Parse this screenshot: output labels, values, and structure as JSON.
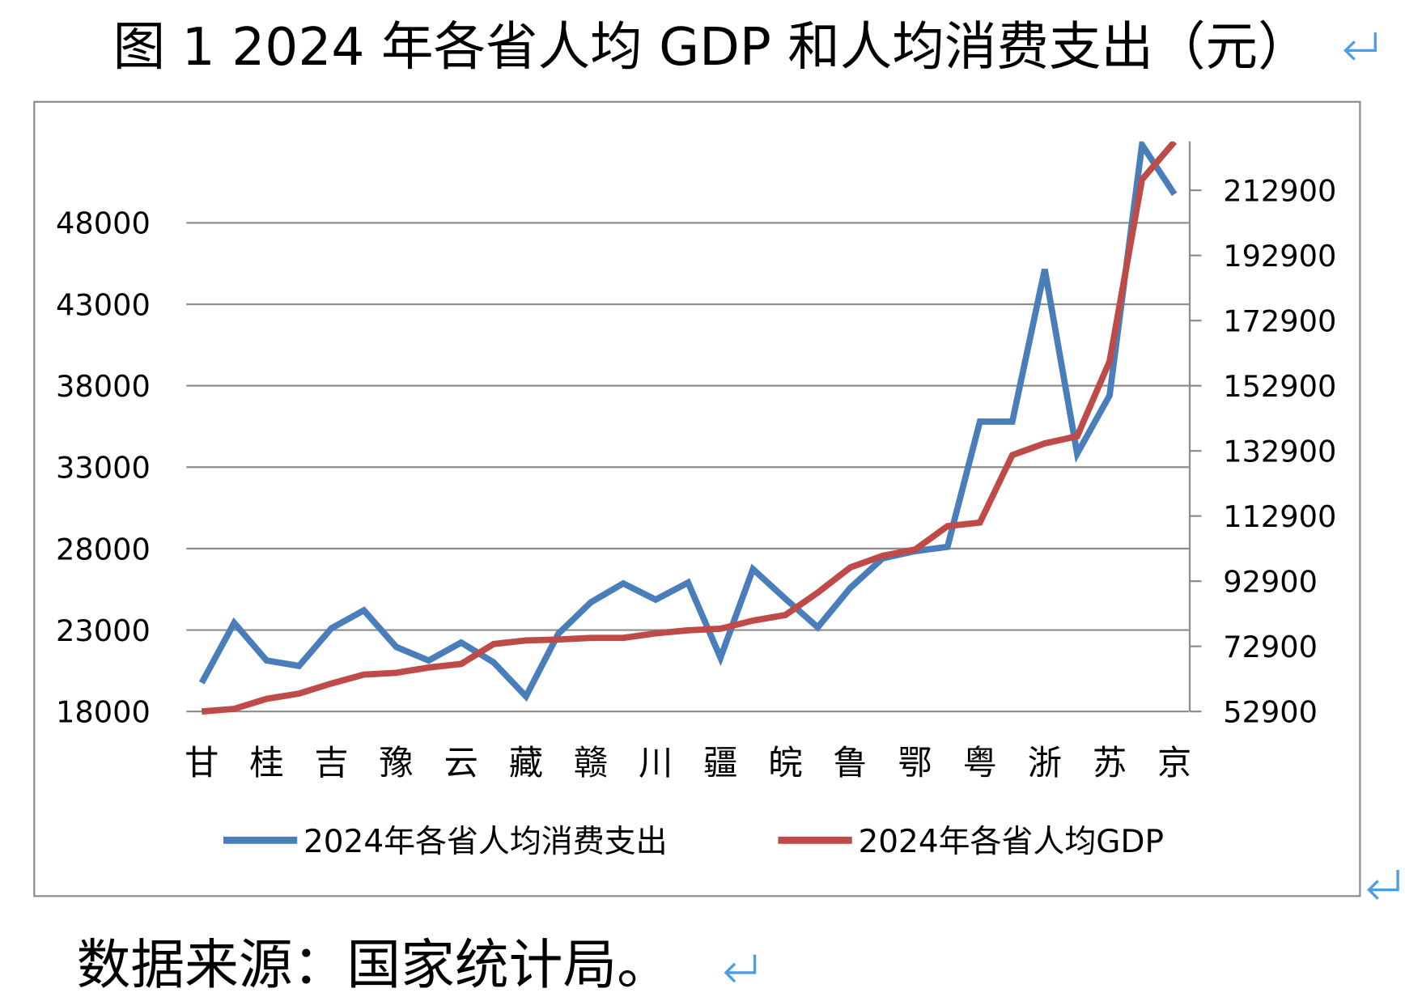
{
  "title": "图 1 2024 年各省人均 GDP 和人均消费支出（元）",
  "source": "数据来源：国家统计局。",
  "paragraph_mark_icon": "return-arrow-icon",
  "colors": {
    "consumption": "#4a7ebb",
    "gdp": "#be4b48",
    "grid": "#8c8c8c",
    "mark": "#4a9ee8"
  },
  "chart_data": {
    "type": "line",
    "title": "图 1 2024 年各省人均 GDP 和人均消费支出（元）",
    "x_tick_labels": [
      "甘",
      "桂",
      "吉",
      "豫",
      "云",
      "藏",
      "赣",
      "川",
      "疆",
      "皖",
      "鲁",
      "鄂",
      "粤",
      "浙",
      "苏",
      "京"
    ],
    "point_count": 31,
    "left_axis": {
      "ticks": [
        "18000",
        "23000",
        "28000",
        "33000",
        "38000",
        "43000",
        "48000"
      ],
      "ylim": [
        18000,
        53000
      ]
    },
    "right_axis": {
      "ticks": [
        "52900",
        "72900",
        "92900",
        "112900",
        "132900",
        "152900",
        "172900",
        "192900",
        "212900"
      ],
      "ylim": [
        52900,
        227900
      ]
    },
    "grid": true,
    "legend_placement": "bottom",
    "series": [
      {
        "name": "2024年各省人均消费支出",
        "axis": "left",
        "color": "#4a7ebb",
        "values": [
          19760,
          23440,
          21130,
          20800,
          23110,
          24210,
          21960,
          21130,
          22230,
          21020,
          18930,
          22780,
          24700,
          25860,
          24870,
          25910,
          21300,
          26740,
          24920,
          23170,
          25580,
          27400,
          27840,
          28110,
          35800,
          35800,
          45150,
          33830,
          37400,
          52790,
          49760
        ]
      },
      {
        "name": "2024年各省人均GDP",
        "axis": "right",
        "color": "#be4b48",
        "values": [
          52900,
          53700,
          56800,
          58400,
          61500,
          64200,
          64800,
          66400,
          67500,
          73600,
          74700,
          75000,
          75500,
          75500,
          76900,
          77800,
          78300,
          80800,
          82500,
          89400,
          97100,
          100700,
          102600,
          109800,
          110900,
          131600,
          135200,
          137400,
          160400,
          216200,
          227800
        ]
      }
    ]
  }
}
